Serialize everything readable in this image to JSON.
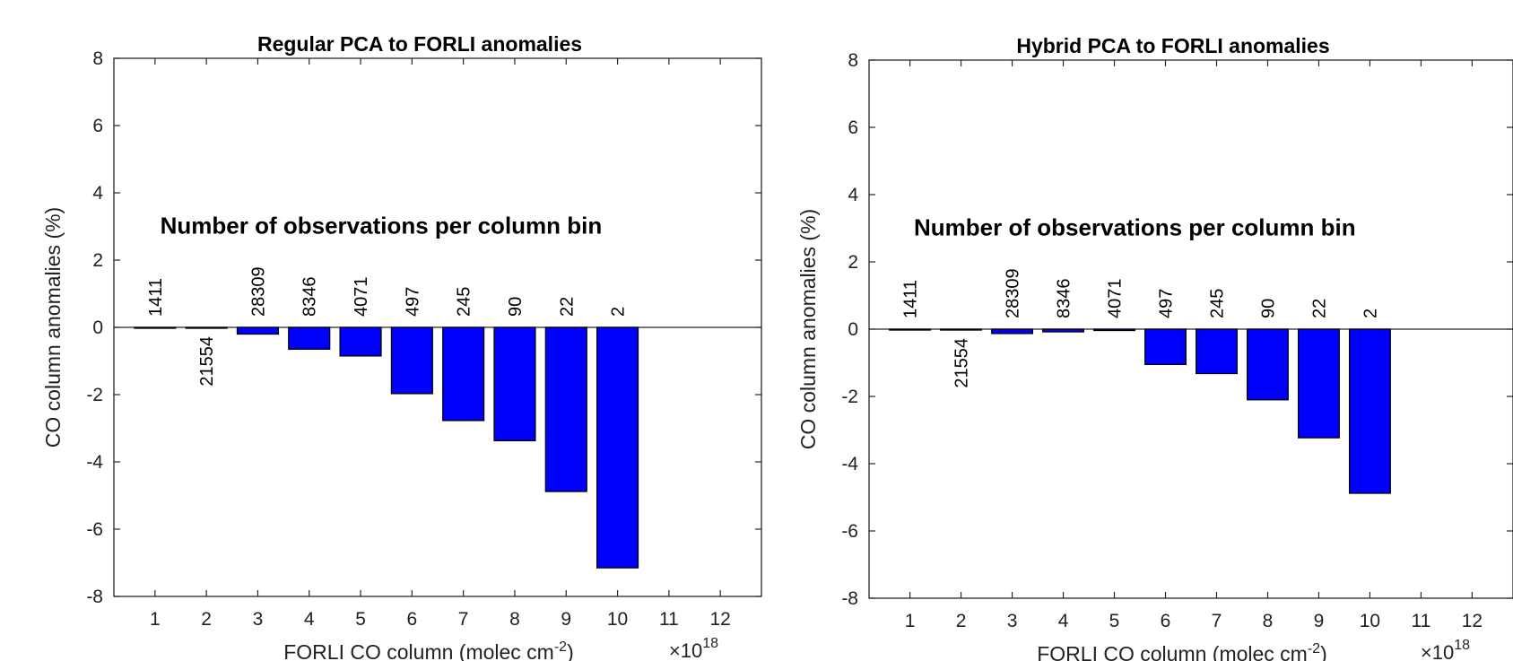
{
  "chart_data": [
    {
      "type": "bar",
      "title": "Regular PCA to FORLI anomalies",
      "xlabel": "FORLI CO column (molec cm",
      "xlabel_sup": "-2",
      "xlabel_end": ")",
      "ylabel": "CO column anomalies (%)",
      "x_multiplier": "×10",
      "x_multiplier_exp": "18",
      "annotation": "Number of observations per column bin",
      "xlim": [
        0.2,
        12.8
      ],
      "ylim": [
        -8,
        8
      ],
      "xticks": [
        1,
        2,
        3,
        4,
        5,
        6,
        7,
        8,
        9,
        10,
        11,
        12
      ],
      "yticks": [
        -8,
        -6,
        -4,
        -2,
        0,
        2,
        4,
        6,
        8
      ],
      "bar_color": "#0000ff",
      "x": [
        1,
        2,
        3,
        4,
        5,
        6,
        7,
        8,
        9,
        10
      ],
      "values": [
        -0.02,
        -0.01,
        -0.2,
        -0.65,
        -0.85,
        -1.97,
        -2.77,
        -3.37,
        -4.88,
        -7.15
      ],
      "counts": [
        "1411",
        "21554",
        "28309",
        "8346",
        "4071",
        "497",
        "245",
        "90",
        "22",
        "2"
      ]
    },
    {
      "type": "bar",
      "title": "Hybrid PCA to FORLI anomalies",
      "xlabel": "FORLI CO column (molec cm",
      "xlabel_sup": "-2",
      "xlabel_end": ")",
      "ylabel": "CO column anomalies (%)",
      "x_multiplier": "×10",
      "x_multiplier_exp": "18",
      "annotation": "Number of observations per column bin",
      "xlim": [
        0.2,
        12.8
      ],
      "ylim": [
        -8,
        8
      ],
      "xticks": [
        1,
        2,
        3,
        4,
        5,
        6,
        7,
        8,
        9,
        10,
        11,
        12
      ],
      "yticks": [
        -8,
        -6,
        -4,
        -2,
        0,
        2,
        4,
        6,
        8
      ],
      "bar_color": "#0000ff",
      "x": [
        1,
        2,
        3,
        4,
        5,
        6,
        7,
        8,
        9,
        10
      ],
      "values": [
        -0.02,
        -0.01,
        -0.13,
        -0.08,
        -0.04,
        -1.05,
        -1.32,
        -2.1,
        -3.23,
        -4.88
      ],
      "counts": [
        "1411",
        "21554",
        "28309",
        "8346",
        "4071",
        "497",
        "245",
        "90",
        "22",
        "2"
      ]
    }
  ]
}
